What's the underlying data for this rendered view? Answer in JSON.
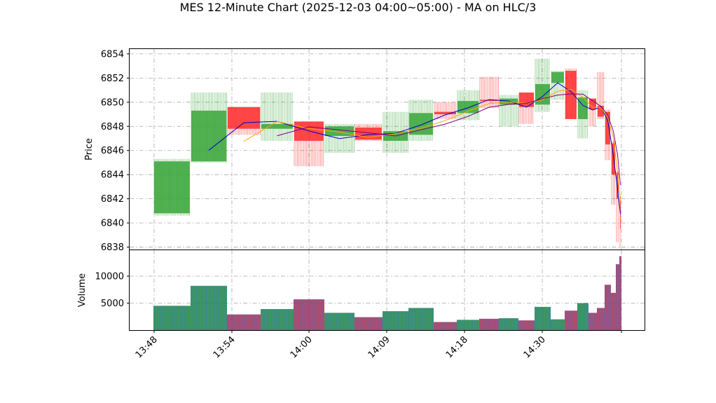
{
  "chart_data": {
    "type": "candlestick",
    "title": "MES 12-Minute Chart (2025-12-03 04:00~05:00) - MA on HLC/3",
    "xlabel": "",
    "price_ylabel": "Price",
    "volume_ylabel": "Volume",
    "price_ylim": [
      6837.8,
      6854.4
    ],
    "price_ticks": [
      "6838",
      "6840",
      "6842",
      "6844",
      "6846",
      "6848",
      "6850",
      "6852",
      "6854"
    ],
    "volume_ylim": [
      0,
      14800
    ],
    "volume_ticks": [
      "5000",
      "10000"
    ],
    "x_ticks": [
      "13:48",
      "13:54",
      "14:00",
      "14:09",
      "14:18",
      "14:30"
    ],
    "grid": true,
    "colors": {
      "up": "#2ca02c",
      "down": "#ff2020",
      "ma_fast": "#0000cc",
      "ma_mid": "#ffa500",
      "ma_slow": "#800080"
    },
    "candles": [
      {
        "open": 6840.8,
        "high": 6845.3,
        "low": 6840.6,
        "close": 6845.1,
        "volume": 4500
      },
      {
        "open": 6845.1,
        "high": 6850.8,
        "low": 6845.0,
        "close": 6849.3,
        "volume": 8200
      },
      {
        "open": 6849.6,
        "high": 6849.6,
        "low": 6847.3,
        "close": 6847.8,
        "volume": 2900
      },
      {
        "open": 6847.8,
        "high": 6850.8,
        "low": 6846.8,
        "close": 6848.2,
        "volume": 3900
      },
      {
        "open": 6848.4,
        "high": 6848.4,
        "low": 6844.7,
        "close": 6846.8,
        "volume": 5700
      },
      {
        "open": 6847.2,
        "high": 6848.2,
        "low": 6845.8,
        "close": 6848.0,
        "volume": 3200
      },
      {
        "open": 6847.9,
        "high": 6848.2,
        "low": 6846.8,
        "close": 6846.9,
        "volume": 2400
      },
      {
        "open": 6846.8,
        "high": 6849.2,
        "low": 6845.8,
        "close": 6847.6,
        "volume": 3500
      },
      {
        "open": 6847.3,
        "high": 6850.2,
        "low": 6846.8,
        "close": 6849.1,
        "volume": 4100
      },
      {
        "open": 6849.2,
        "high": 6850.0,
        "low": 6848.6,
        "close": 6849.0,
        "volume": 1500
      },
      {
        "open": 6849.1,
        "high": 6851.0,
        "low": 6848.5,
        "close": 6850.1,
        "volume": 1900
      },
      {
        "open": 6850.2,
        "high": 6852.1,
        "low": 6849.5,
        "close": 6850.1,
        "volume": 2100
      },
      {
        "open": 6849.8,
        "high": 6850.6,
        "low": 6848.0,
        "close": 6850.3,
        "volume": 2200
      },
      {
        "open": 6850.8,
        "high": 6850.8,
        "low": 6848.2,
        "close": 6849.6,
        "volume": 1800
      },
      {
        "open": 6849.8,
        "high": 6853.6,
        "low": 6849.2,
        "close": 6851.5,
        "volume": 4300
      },
      {
        "open": 6851.6,
        "high": 6852.6,
        "low": 6850.2,
        "close": 6852.5,
        "volume": 2000
      },
      {
        "open": 6852.6,
        "high": 6852.8,
        "low": 6848.6,
        "close": 6848.6,
        "volume": 3600
      },
      {
        "open": 6848.6,
        "high": 6851.0,
        "low": 6847.0,
        "close": 6850.4,
        "volume": 5000
      },
      {
        "open": 6850.3,
        "high": 6850.3,
        "low": 6848.0,
        "close": 6849.4,
        "volume": 3200
      },
      {
        "open": 6849.7,
        "high": 6852.5,
        "low": 6848.6,
        "close": 6848.8,
        "volume": 4100
      },
      {
        "open": 6849.2,
        "high": 6849.4,
        "low": 6845.2,
        "close": 6846.5,
        "volume": 8400
      },
      {
        "open": 6846.6,
        "high": 6846.8,
        "low": 6841.5,
        "close": 6844.0,
        "volume": 6900
      },
      {
        "open": 6844.2,
        "high": 6844.2,
        "low": 6838.4,
        "close": 6842.0,
        "volume": 12200
      },
      {
        "open": 6842.2,
        "high": 6842.4,
        "low": 6837.9,
        "close": 6839.5,
        "volume": 13700
      }
    ]
  }
}
